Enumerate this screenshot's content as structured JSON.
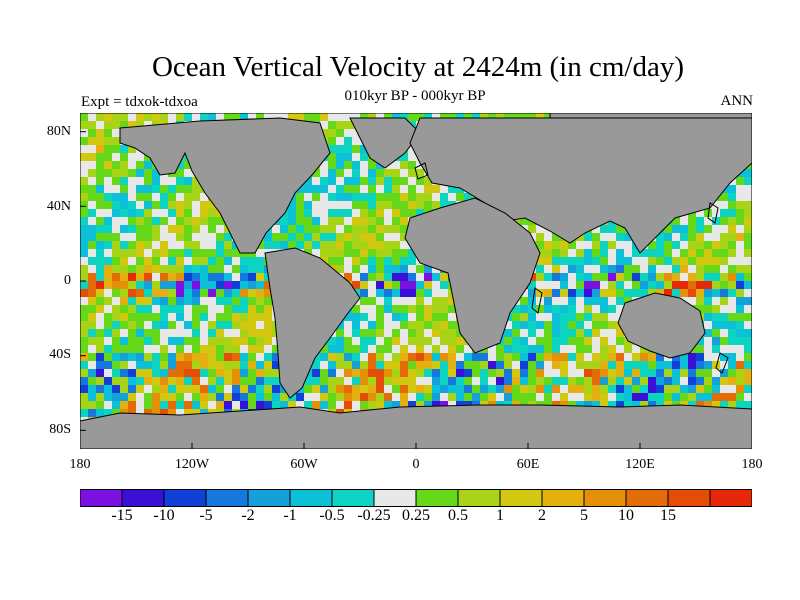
{
  "header": {
    "title": "Ocean Vertical Velocity at 2424m (in cm/day)",
    "subtitle": "010kyr BP - 000kyr BP",
    "left_string": "Expt = tdxok-tdxoa",
    "right_string": "ANN"
  },
  "map": {
    "lat_ticks": [
      "80N",
      "40N",
      "0",
      "40S",
      "80S"
    ],
    "lon_ticks": [
      "180",
      "120W",
      "60W",
      "0",
      "60E",
      "120E",
      "180"
    ],
    "land_color": "#999999",
    "ocean_default_color": "#e8e8e8"
  },
  "colorbar": {
    "colors": [
      "#7b10e0",
      "#3a10d8",
      "#1040d8",
      "#1478de",
      "#14a0d8",
      "#0cc0d8",
      "#0cd4c0",
      "#e8e8e8",
      "#66d81a",
      "#a8d418",
      "#d2c810",
      "#e4b010",
      "#e49008",
      "#e46c08",
      "#e44c08",
      "#e42808"
    ],
    "labels": [
      "-15",
      "-10",
      "-5",
      "-2",
      "-1",
      "-0.5",
      "-0.25",
      "0.25",
      "0.5",
      "1",
      "2",
      "5",
      "10",
      "15"
    ]
  }
}
